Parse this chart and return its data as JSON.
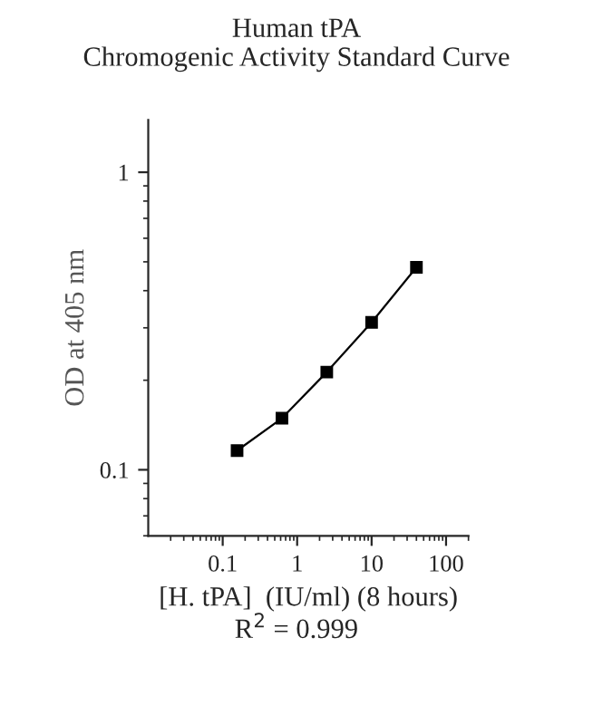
{
  "chart_data": {
    "type": "line",
    "title": "Human tPA\nChromogenic Activity Standard Curve",
    "xlabel": "[H. tPA]  (IU/ml) (8 hours)",
    "ylabel": "OD at 405 nm",
    "annotations": [
      "R$^{2}$ = 0.999"
    ],
    "x": [
      0.156,
      0.625,
      2.5,
      10,
      40
    ],
    "series": [
      {
        "color": "#000000",
        "values": [
          0.116,
          0.149,
          0.213,
          0.313,
          0.479
        ]
      }
    ],
    "log": "xy",
    "xlim": [
      0.01,
      200
    ],
    "ylim": [
      0.06,
      1.5
    ],
    "xticks": [
      0.1,
      1,
      10,
      100
    ],
    "yticks": [
      0.1,
      1
    ],
    "marker": "square",
    "line_style": "solid",
    "grid": false,
    "legend": false
  }
}
